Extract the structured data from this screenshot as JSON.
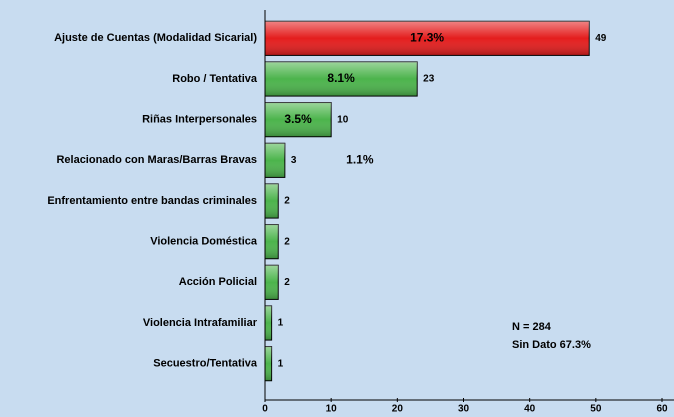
{
  "chart_data": {
    "type": "bar",
    "orientation": "horizontal",
    "categories": [
      "Ajuste de Cuentas (Modalidad Sicarial)",
      "Robo / Tentativa",
      "Riñas Interpersonales",
      "Relacionado con Maras/Barras Bravas",
      "Enfrentamiento entre bandas criminales",
      "Violencia Doméstica",
      "Acción Policial",
      "Violencia Intrafamiliar",
      "Secuestro/Tentativa"
    ],
    "values": [
      49,
      23,
      10,
      3,
      2,
      2,
      2,
      1,
      1
    ],
    "percent_labels": [
      "17.3%",
      "8.1%",
      "3.5%",
      "1.1%",
      null,
      null,
      null,
      null,
      null
    ],
    "colors": [
      "#e41e1e",
      "#4cb44c",
      "#4cb44c",
      "#4cb44c",
      "#4cb44c",
      "#4cb44c",
      "#4cb44c",
      "#4cb44c",
      "#4cb44c"
    ],
    "xlim": [
      0,
      60
    ],
    "xticks": [
      0,
      10,
      20,
      30,
      40,
      50,
      60
    ],
    "annotations": [
      "N = 284",
      "Sin Dato 67.3%"
    ]
  }
}
